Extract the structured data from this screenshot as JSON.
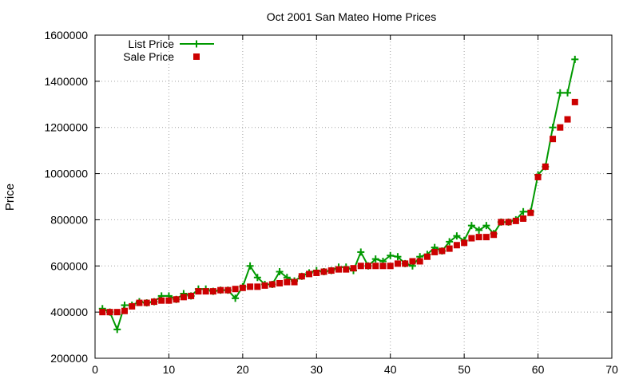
{
  "chart_data": {
    "type": "line",
    "title": "Oct 2001 San Mateo Home Prices",
    "xlabel": "",
    "ylabel": "Price",
    "xlim": [
      0,
      70
    ],
    "ylim": [
      200000,
      1600000
    ],
    "x_ticks": [
      0,
      10,
      20,
      30,
      40,
      50,
      60,
      70
    ],
    "y_ticks": [
      200000,
      400000,
      600000,
      800000,
      1000000,
      1200000,
      1400000,
      1600000
    ],
    "x_tick_labels": [
      "0",
      "10",
      "20",
      "30",
      "40",
      "50",
      "60",
      "70"
    ],
    "y_tick_labels": [
      "200000",
      "400000",
      "600000",
      "800000",
      "1000000",
      "1200000",
      "1400000",
      "1600000"
    ],
    "grid": true,
    "legend_position": "top-left",
    "series": [
      {
        "name": "List Price",
        "style": "line-with-plus-markers",
        "color": "#009900",
        "x": [
          1,
          2,
          3,
          4,
          5,
          6,
          7,
          8,
          9,
          10,
          11,
          12,
          13,
          14,
          15,
          16,
          17,
          18,
          19,
          20,
          21,
          22,
          23,
          24,
          25,
          26,
          27,
          28,
          29,
          30,
          31,
          32,
          33,
          34,
          35,
          36,
          37,
          38,
          39,
          40,
          41,
          42,
          43,
          44,
          45,
          46,
          47,
          48,
          49,
          50,
          51,
          52,
          53,
          54,
          55,
          56,
          57,
          58,
          59,
          60,
          61,
          62,
          63,
          64,
          65
        ],
        "values": [
          415000,
          400000,
          325000,
          430000,
          430000,
          445000,
          440000,
          445000,
          470000,
          470000,
          455000,
          480000,
          470000,
          500000,
          500000,
          490000,
          495000,
          495000,
          460000,
          510000,
          600000,
          550000,
          520000,
          520000,
          575000,
          550000,
          535000,
          555000,
          570000,
          580000,
          575000,
          580000,
          595000,
          595000,
          580000,
          660000,
          600000,
          630000,
          620000,
          645000,
          640000,
          610000,
          600000,
          640000,
          650000,
          680000,
          665000,
          705000,
          730000,
          710000,
          775000,
          755000,
          775000,
          740000,
          790000,
          790000,
          800000,
          835000,
          835000,
          995000,
          1030000,
          1200000,
          1350000,
          1350000,
          1495000
        ]
      },
      {
        "name": "Sale Price",
        "style": "square-markers",
        "color": "#cc0000",
        "x": [
          1,
          2,
          3,
          4,
          5,
          6,
          7,
          8,
          9,
          10,
          11,
          12,
          13,
          14,
          15,
          16,
          17,
          18,
          19,
          20,
          21,
          22,
          23,
          24,
          25,
          26,
          27,
          28,
          29,
          30,
          31,
          32,
          33,
          34,
          35,
          36,
          37,
          38,
          39,
          40,
          41,
          42,
          43,
          44,
          45,
          46,
          47,
          48,
          49,
          50,
          51,
          52,
          53,
          54,
          55,
          56,
          57,
          58,
          59,
          60,
          61,
          62,
          63,
          64,
          65
        ],
        "values": [
          400000,
          400000,
          400000,
          405000,
          425000,
          440000,
          440000,
          445000,
          450000,
          450000,
          455000,
          465000,
          470000,
          490000,
          490000,
          490000,
          495000,
          495000,
          500000,
          505000,
          510000,
          510000,
          515000,
          520000,
          525000,
          530000,
          530000,
          555000,
          565000,
          570000,
          575000,
          580000,
          585000,
          585000,
          590000,
          600000,
          600000,
          600000,
          600000,
          600000,
          610000,
          610000,
          620000,
          620000,
          640000,
          660000,
          665000,
          675000,
          690000,
          700000,
          720000,
          725000,
          725000,
          735000,
          790000,
          790000,
          795000,
          805000,
          830000,
          985000,
          1030000,
          1150000,
          1200000,
          1235000,
          1310000
        ]
      }
    ]
  }
}
